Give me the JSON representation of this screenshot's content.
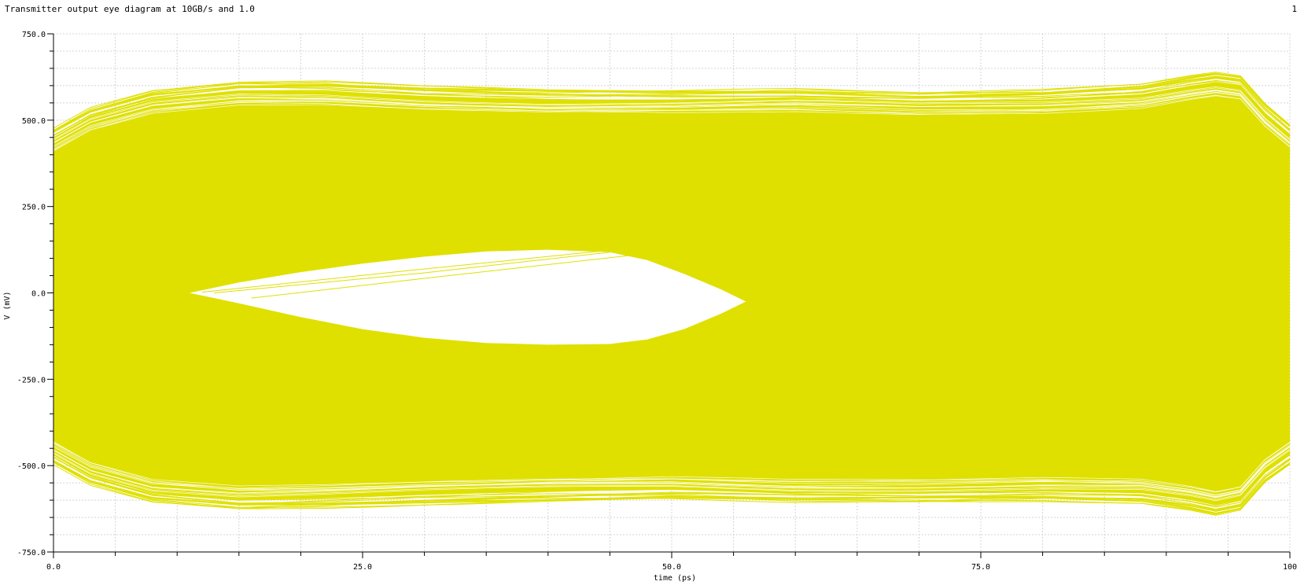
{
  "header": {
    "title": "Transmitter output eye diagram at 10GB/s and 1.0",
    "page_number": "1"
  },
  "chart_data": {
    "type": "line",
    "title": "Transmitter output eye diagram at 10GB/s and 1.0",
    "xlabel": "time (ps)",
    "ylabel": "V (mV)",
    "xlim": [
      0,
      100
    ],
    "ylim": [
      -750,
      750
    ],
    "x_ticks": [
      0,
      25,
      50,
      75,
      100
    ],
    "x_tick_labels": [
      "0.0",
      "25.0",
      "50.0",
      "75.0",
      "100"
    ],
    "y_ticks": [
      750,
      500,
      250,
      0,
      -250,
      -500,
      -750
    ],
    "y_tick_labels": [
      "750.0",
      "500.0",
      "250.0",
      "0.0",
      "-250.0",
      "-500.0",
      "-750.0"
    ],
    "grid": true,
    "legend": "none",
    "trace_color": "#dfe000",
    "grid_color": "#d4d4d4",
    "series": [
      {
        "values_desc": "eye upper outer envelope",
        "x": [
          0,
          3,
          8,
          15,
          22,
          30,
          40,
          50,
          60,
          70,
          80,
          88,
          92,
          94,
          96,
          98,
          100
        ],
        "y": [
          450,
          510,
          560,
          585,
          585,
          570,
          560,
          560,
          565,
          555,
          560,
          575,
          600,
          610,
          600,
          520,
          460
        ]
      },
      {
        "values_desc": "eye lower outer envelope",
        "x": [
          0,
          3,
          8,
          15,
          22,
          30,
          40,
          50,
          60,
          70,
          80,
          88,
          92,
          94,
          96,
          98,
          100
        ],
        "y": [
          -470,
          -530,
          -580,
          -600,
          -595,
          -585,
          -575,
          -570,
          -580,
          -580,
          -575,
          -580,
          -600,
          -615,
          -600,
          -520,
          -470
        ]
      },
      {
        "values_desc": "eye opening upper boundary",
        "x": [
          11,
          15,
          20,
          25,
          30,
          35,
          40,
          45,
          48,
          51,
          54,
          56
        ],
        "y": [
          0,
          30,
          60,
          85,
          105,
          120,
          125,
          118,
          95,
          55,
          10,
          -25
        ]
      },
      {
        "values_desc": "eye opening lower boundary",
        "x": [
          11,
          15,
          20,
          25,
          30,
          35,
          40,
          45,
          48,
          51,
          54,
          56
        ],
        "y": [
          0,
          -30,
          -70,
          -105,
          -130,
          -145,
          -150,
          -148,
          -135,
          -105,
          -60,
          -25
        ]
      }
    ]
  }
}
